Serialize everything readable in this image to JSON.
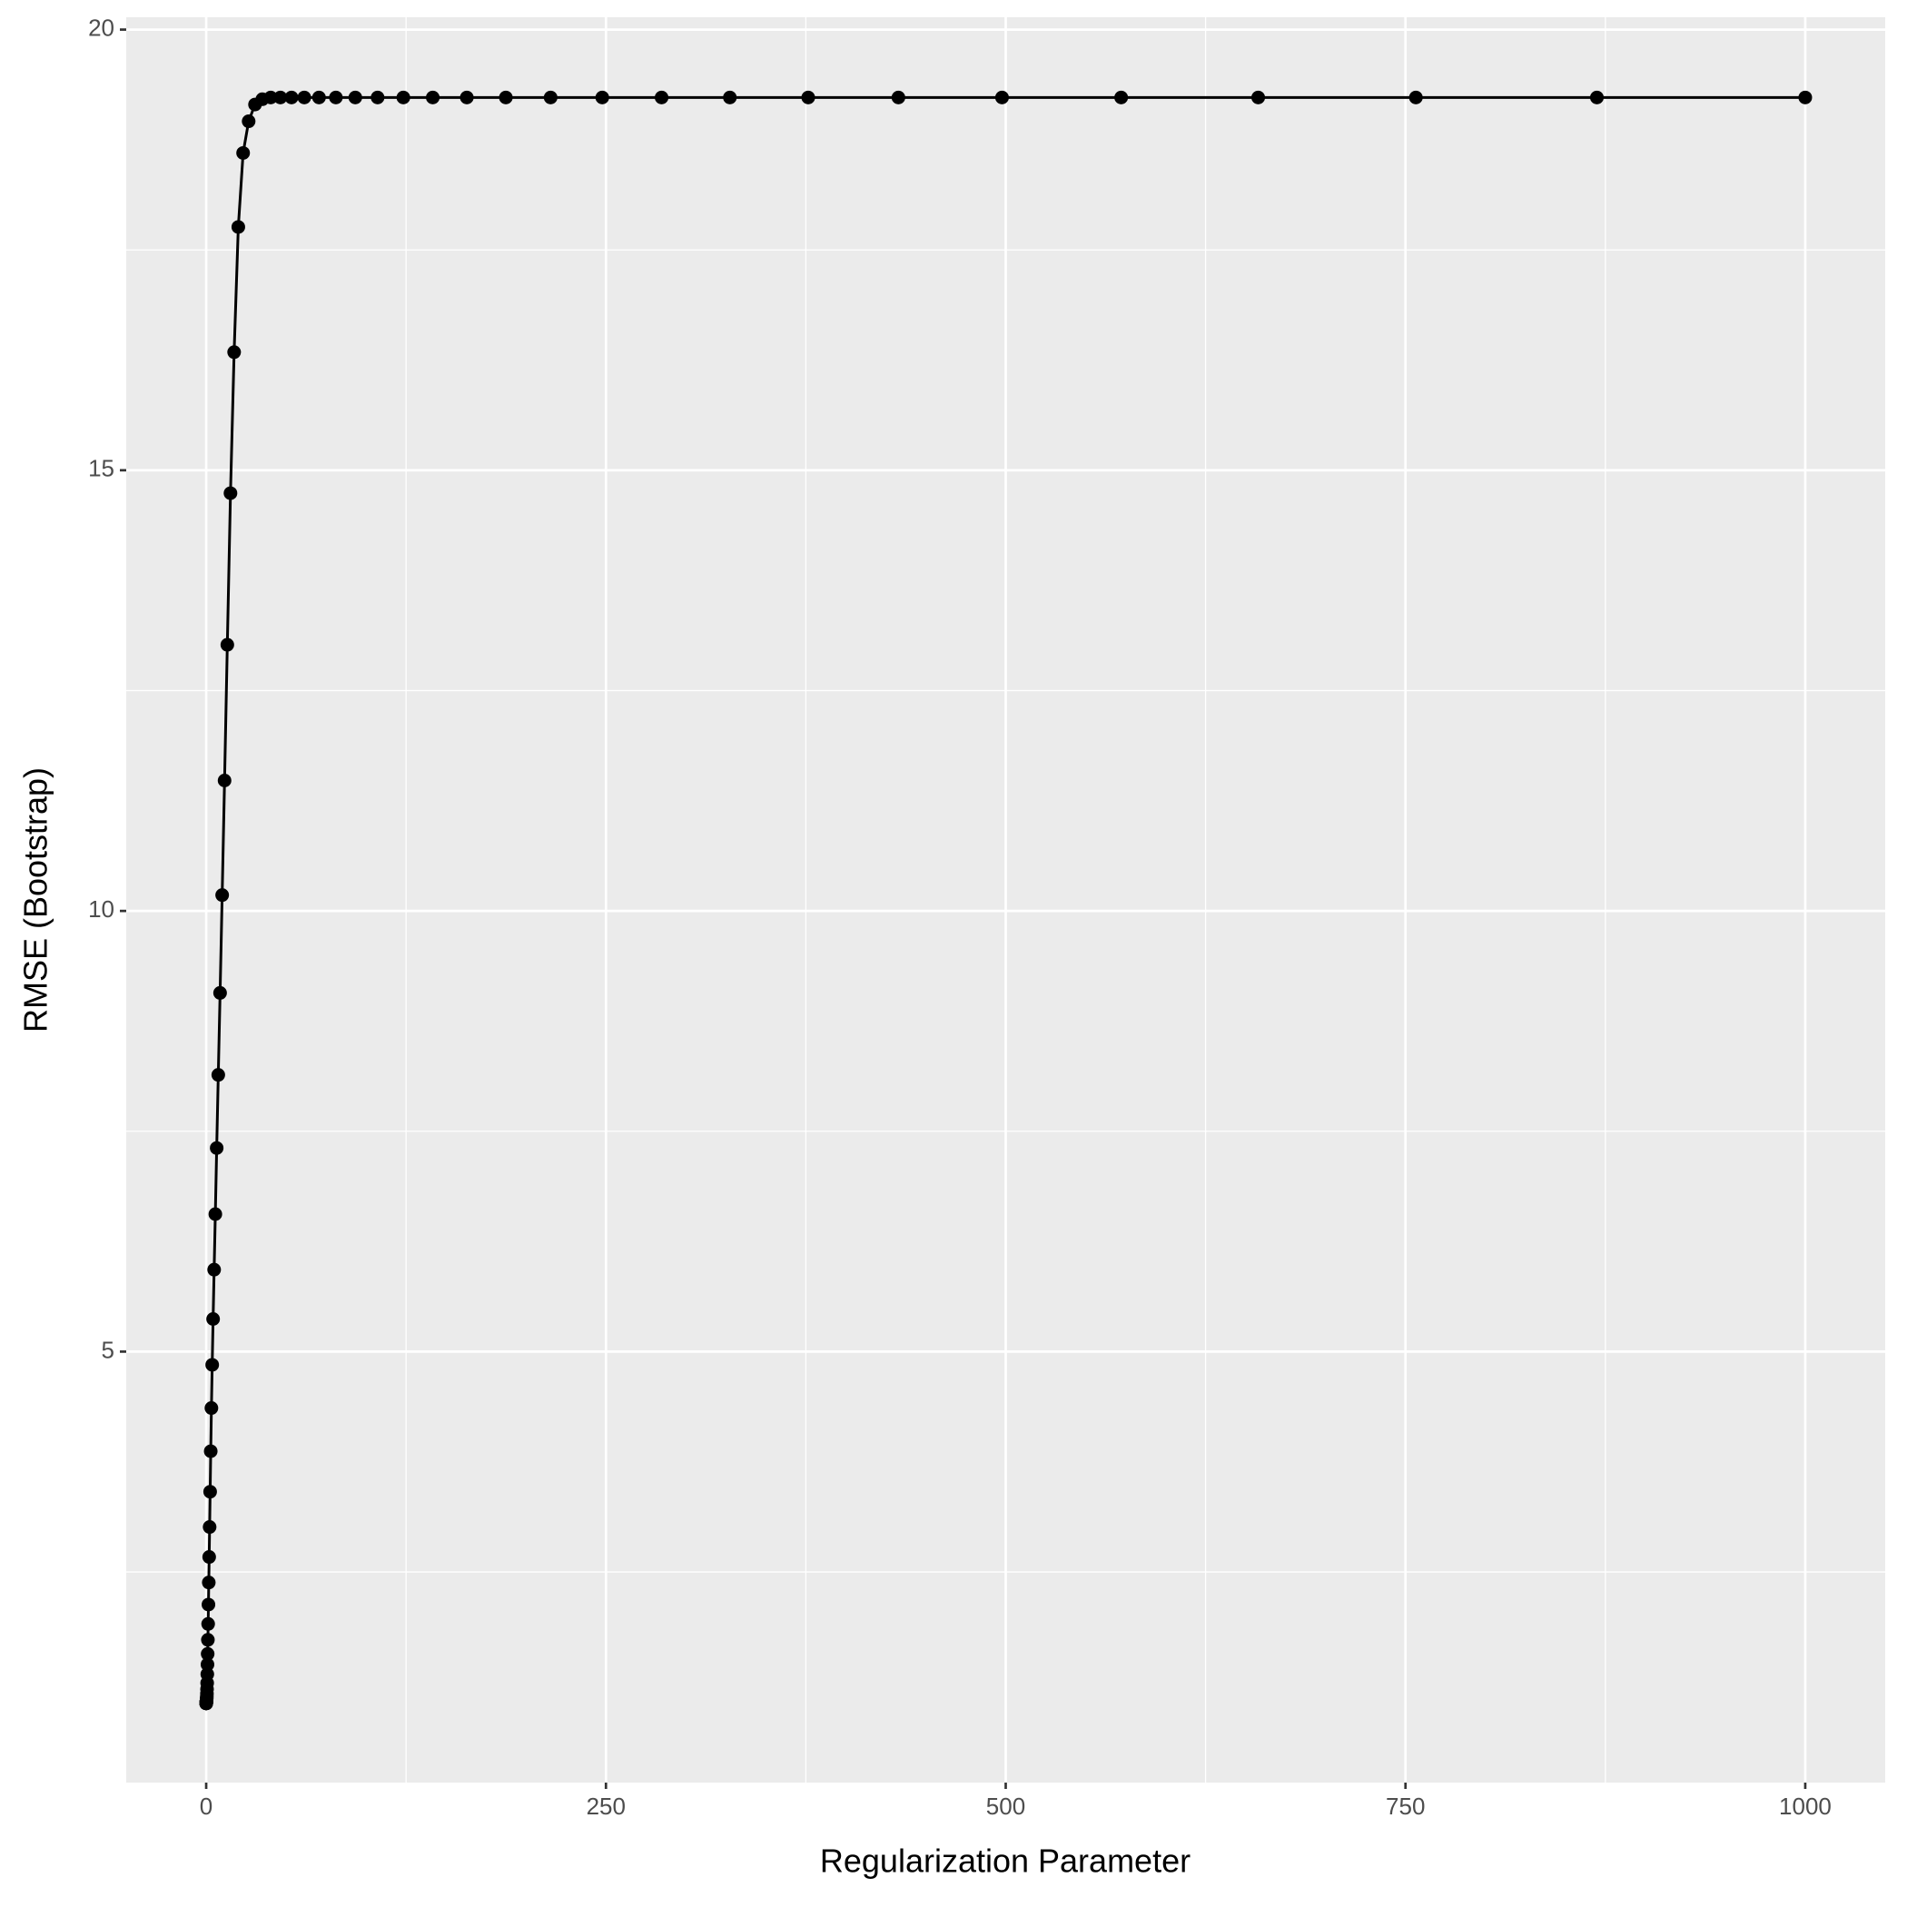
{
  "chart_data": {
    "type": "line",
    "x_label": "Regularization Parameter",
    "y_label": "RMSE (Bootstrap)",
    "x": [
      0.001,
      0.00115,
      0.001322,
      0.00152,
      0.001748,
      0.002009,
      0.00231,
      0.002656,
      0.003054,
      0.003511,
      0.004037,
      0.004642,
      0.005337,
      0.006136,
      0.007055,
      0.008111,
      0.009326,
      0.01072,
      0.01233,
      0.01417,
      0.0163,
      0.01874,
      0.02154,
      0.02477,
      0.02848,
      0.03275,
      0.03765,
      0.04329,
      0.04977,
      0.05722,
      0.06579,
      0.07565,
      0.08697,
      0.1,
      0.115,
      0.1322,
      0.152,
      0.1748,
      0.2009,
      0.231,
      0.2656,
      0.3054,
      0.3511,
      0.4037,
      0.4642,
      0.5337,
      0.6136,
      0.7055,
      0.8111,
      0.9326,
      1.072,
      1.233,
      1.417,
      1.63,
      1.874,
      2.154,
      2.477,
      2.848,
      3.275,
      3.765,
      4.329,
      4.977,
      5.722,
      6.579,
      7.565,
      8.697,
      10,
      11.5,
      13.22,
      15.2,
      17.48,
      20.09,
      23.1,
      26.56,
      30.54,
      35.11,
      40.37,
      46.42,
      53.37,
      61.36,
      70.55,
      81.11,
      93.26,
      107.2,
      123.3,
      141.7,
      163,
      187.4,
      215.4,
      247.7,
      284.8,
      327.5,
      376.5,
      432.9,
      497.7,
      572.2,
      657.9,
      756.5,
      869.7,
      1000
    ],
    "series": [
      {
        "color": "#000000",
        "values": [
          1.01,
          1.01,
          1.01,
          1.01,
          1.01,
          1.01,
          1.01,
          1.01,
          1.01,
          1.01,
          1.01,
          1.01,
          1.01,
          1.01,
          1.01,
          1.01,
          1.01,
          1.01,
          1.01,
          1.01,
          1.01,
          1.02,
          1.02,
          1.02,
          1.02,
          1.02,
          1.02,
          1.02,
          1.02,
          1.02,
          1.02,
          1.02,
          1.02,
          1.02,
          1.02,
          1.02,
          1.02,
          1.03,
          1.03,
          1.04,
          1.05,
          1.06,
          1.07,
          1.09,
          1.12,
          1.17,
          1.24,
          1.34,
          1.45,
          1.57,
          1.73,
          1.91,
          2.13,
          2.38,
          2.67,
          3.01,
          3.41,
          3.87,
          4.36,
          4.85,
          5.37,
          5.93,
          6.56,
          7.31,
          8.14,
          9.07,
          10.18,
          11.48,
          13.02,
          14.74,
          16.34,
          17.76,
          18.6,
          18.96,
          19.15,
          19.21,
          19.23,
          19.23,
          19.23,
          19.23,
          19.23,
          19.23,
          19.23,
          19.23,
          19.23,
          19.23,
          19.23,
          19.23,
          19.23,
          19.23,
          19.23,
          19.23,
          19.23,
          19.23,
          19.23,
          19.23,
          19.23,
          19.23,
          19.23,
          19.23
        ]
      }
    ],
    "xlim": [
      -50,
      1050
    ],
    "ylim": [
      0.11,
      20.14
    ],
    "xticks": [
      0,
      250,
      500,
      750,
      1000
    ],
    "yticks": [
      5,
      10,
      15,
      20
    ],
    "grid": true
  }
}
